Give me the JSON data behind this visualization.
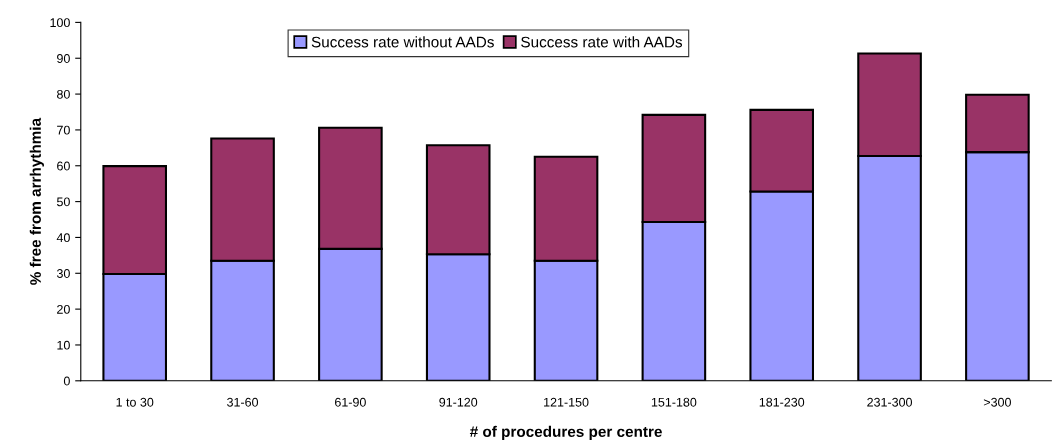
{
  "chart_data": {
    "type": "bar",
    "stacked": true,
    "xlabel": "# of procedures per centre",
    "ylabel": "% free from arrhythmia",
    "categories": [
      "1 to 30",
      "31-60",
      "61-90",
      "91-120",
      "121-150",
      "151-180",
      "181-230",
      "231-300",
      ">300"
    ],
    "series": [
      {
        "name": "Success rate without AADs",
        "color": "#9999ff",
        "values": [
          29.8,
          33.5,
          36.8,
          35.3,
          33.5,
          44.3,
          52.8,
          62.7,
          63.8
        ]
      },
      {
        "name": "Success rate with AADs",
        "color": "#993366",
        "values": [
          30.1,
          34.1,
          33.8,
          30.4,
          29.0,
          29.9,
          22.8,
          28.6,
          16.0
        ]
      }
    ],
    "ylim": [
      0,
      100
    ],
    "yticks": [
      0,
      10,
      20,
      30,
      40,
      50,
      60,
      70,
      80,
      90,
      100
    ],
    "grid": false,
    "legend": "top"
  }
}
